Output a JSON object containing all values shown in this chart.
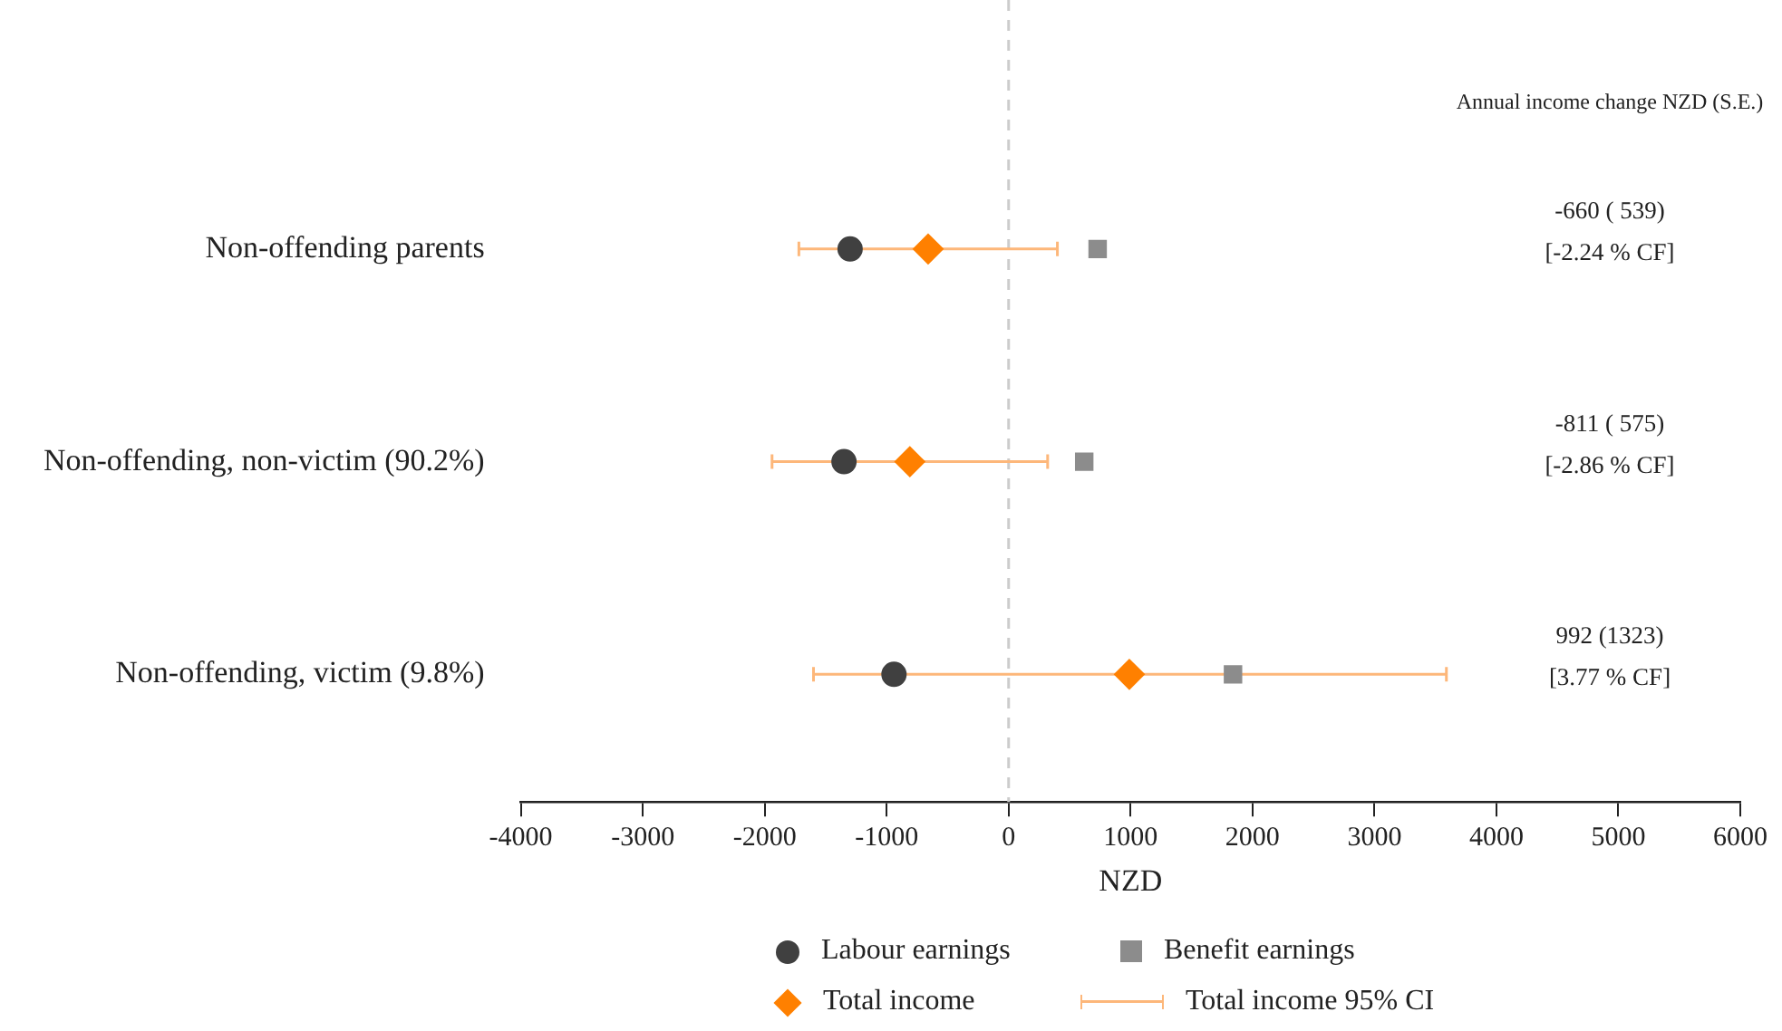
{
  "chart_data": {
    "type": "scatter",
    "orientation": "horizontal",
    "xlabel": "NZD",
    "categories": [
      "Non-offending parents",
      "Non-offending, non-victim (90.2%)",
      "Non-offending, victim (9.8%)"
    ],
    "xlim": [
      -4000,
      6000
    ],
    "xticks": [
      -4000,
      -3000,
      -2000,
      -1000,
      0,
      1000,
      2000,
      3000,
      4000,
      5000,
      6000
    ],
    "grid": false,
    "legend": "bottom",
    "series": [
      {
        "name": "Labour earnings",
        "color": "#404040",
        "marker": "circle",
        "values": [
          -1300,
          -1350,
          -940
        ]
      },
      {
        "name": "Benefit earnings",
        "color": "#8c8c8c",
        "marker": "square",
        "values": [
          730,
          620,
          1840
        ]
      },
      {
        "name": "Total income",
        "color": "#ff8000",
        "marker": "diamond",
        "values": [
          -660,
          -810,
          990
        ],
        "errors": [
          [
            -1720,
            400
          ],
          [
            -1940,
            320
          ],
          [
            -1600,
            3590
          ]
        ]
      },
      {
        "name": "Total income 95% CI",
        "color": "#fdb77a",
        "marker": "none",
        "values": [
          null,
          null,
          null
        ]
      }
    ],
    "ref_lines": [
      {
        "axis": "x",
        "value": 0,
        "color": "#cccccc",
        "line_style": "dashed"
      }
    ],
    "annotations": [
      "Annual income change NZD (S.E.)",
      "-660 ( 539)\n[-2.24 % CF]",
      "-811 ( 575)\n[-2.86 % CF]",
      "992 (1323)\n[3.77 % CF]"
    ]
  }
}
